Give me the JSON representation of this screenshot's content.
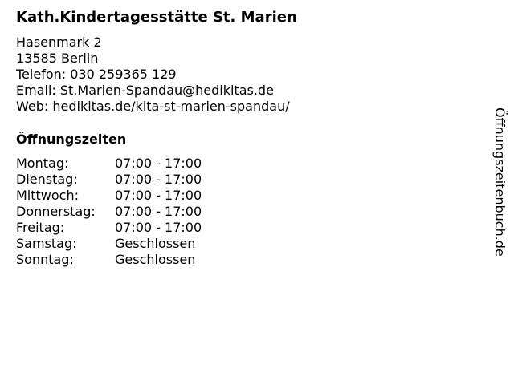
{
  "title": "Kath.Kindertagesstätte St. Marien",
  "address": {
    "street": "Hasenmark 2",
    "city": "13585 Berlin",
    "phone": "Telefon: 030 259365 129",
    "email": "Email: St.Marien-Spandau@hedikitas.de",
    "web": "Web: hedikitas.de/kita-st-marien-spandau/"
  },
  "hours_heading": "Öffnungszeiten",
  "hours": [
    {
      "day": "Montag:",
      "time": "07:00 - 17:00"
    },
    {
      "day": "Dienstag:",
      "time": "07:00 - 17:00"
    },
    {
      "day": "Mittwoch:",
      "time": "07:00 - 17:00"
    },
    {
      "day": "Donnerstag:",
      "time": "07:00 - 17:00"
    },
    {
      "day": "Freitag:",
      "time": "07:00 - 17:00"
    },
    {
      "day": "Samstag:",
      "time": "Geschlossen"
    },
    {
      "day": "Sonntag:",
      "time": "Geschlossen"
    }
  ],
  "side_label": "Öffnungszeitenbuch.de"
}
